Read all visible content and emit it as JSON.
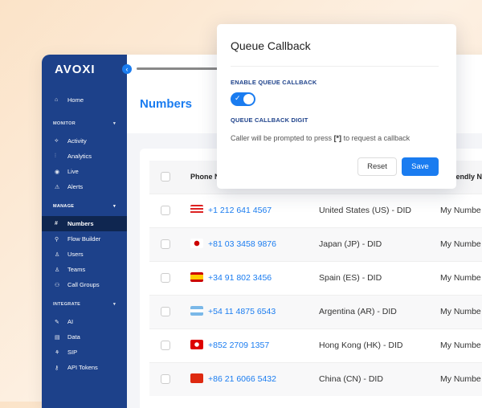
{
  "sidebar": {
    "logo": "AVOXI",
    "home": "Home",
    "sections": [
      {
        "label": "MONITOR",
        "items": [
          "Activity",
          "Analytics",
          "Live",
          "Alerts"
        ]
      },
      {
        "label": "MANAGE",
        "items": [
          "Numbers",
          "Flow Builder",
          "Users",
          "Teams",
          "Call Groups"
        ]
      },
      {
        "label": "INTEGRATE",
        "items": [
          "AI",
          "Data",
          "SIP",
          "API Tokens"
        ]
      }
    ],
    "active": "Numbers"
  },
  "page": {
    "title": "Numbers"
  },
  "table": {
    "headers": [
      "Phone N",
      "Friendly Na"
    ],
    "rows": [
      {
        "flag": "us",
        "phone": "+1 212 641 4567",
        "type": "United States (US) - DID",
        "name": "My Numbe"
      },
      {
        "flag": "jp",
        "phone": "+81 03 3458 9876",
        "type": "Japan (JP) - DID",
        "name": "My Numbe"
      },
      {
        "flag": "es",
        "phone": "+34 91 802 3456",
        "type": "Spain (ES) - DID",
        "name": "My Numbe"
      },
      {
        "flag": "ar",
        "phone": "+54 11 4875 6543",
        "type": "Argentina (AR) - DID",
        "name": "My Numbe"
      },
      {
        "flag": "hk",
        "phone": "+852 2709 1357",
        "type": "Hong Kong (HK) - DID",
        "name": "My Numbe"
      },
      {
        "flag": "cn",
        "phone": "+86 21 6066 5432",
        "type": "China (CN) - DID",
        "name": "My Numbe"
      }
    ]
  },
  "modal": {
    "title": "Queue Callback",
    "enable_label": "ENABLE QUEUE CALLBACK",
    "enabled": true,
    "digit_label": "QUEUE CALLBACK DIGIT",
    "desc_pre": "Caller will be prompted to press ",
    "digit": "[*]",
    "desc_post": " to request a callback",
    "reset": "Reset",
    "save": "Save"
  },
  "colors": {
    "sidebar": "#1d418a",
    "accent": "#1a7cf0"
  }
}
